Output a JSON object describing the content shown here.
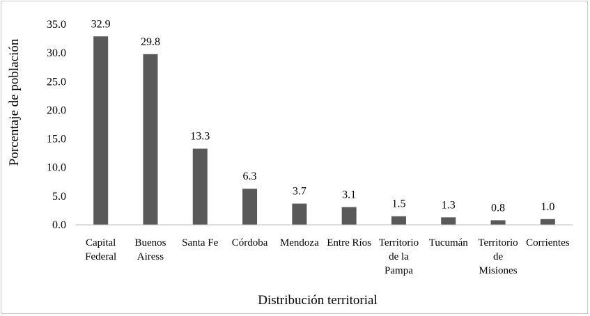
{
  "chart_data": {
    "type": "bar",
    "title": "",
    "xlabel": "Distribución territorial",
    "ylabel": "Porcentaje de población",
    "ylim": [
      0,
      35
    ],
    "yticks": [
      "0.0",
      "5.0",
      "10.0",
      "15.0",
      "20.0",
      "25.0",
      "30.0",
      "35.0"
    ],
    "grid": false,
    "legend": "none",
    "bar_color": "#595959",
    "categories": [
      [
        "Capital",
        "Federal"
      ],
      [
        "Buenos",
        "Airess"
      ],
      [
        "Santa Fe"
      ],
      [
        "Córdoba"
      ],
      [
        "Mendoza"
      ],
      [
        "Entre Ríos"
      ],
      [
        "Territorio",
        "de la",
        "Pampa"
      ],
      [
        "Tucumán"
      ],
      [
        "Territorio",
        "de",
        "Misiones"
      ],
      [
        "Corrientes"
      ]
    ],
    "values": [
      32.9,
      29.8,
      13.3,
      6.3,
      3.7,
      3.1,
      1.5,
      1.3,
      0.8,
      1.0
    ],
    "value_labels": [
      "32.9",
      "29.8",
      "13.3",
      "6.3",
      "3.7",
      "3.1",
      "1.5",
      "1.3",
      "0.8",
      "1.0"
    ]
  }
}
